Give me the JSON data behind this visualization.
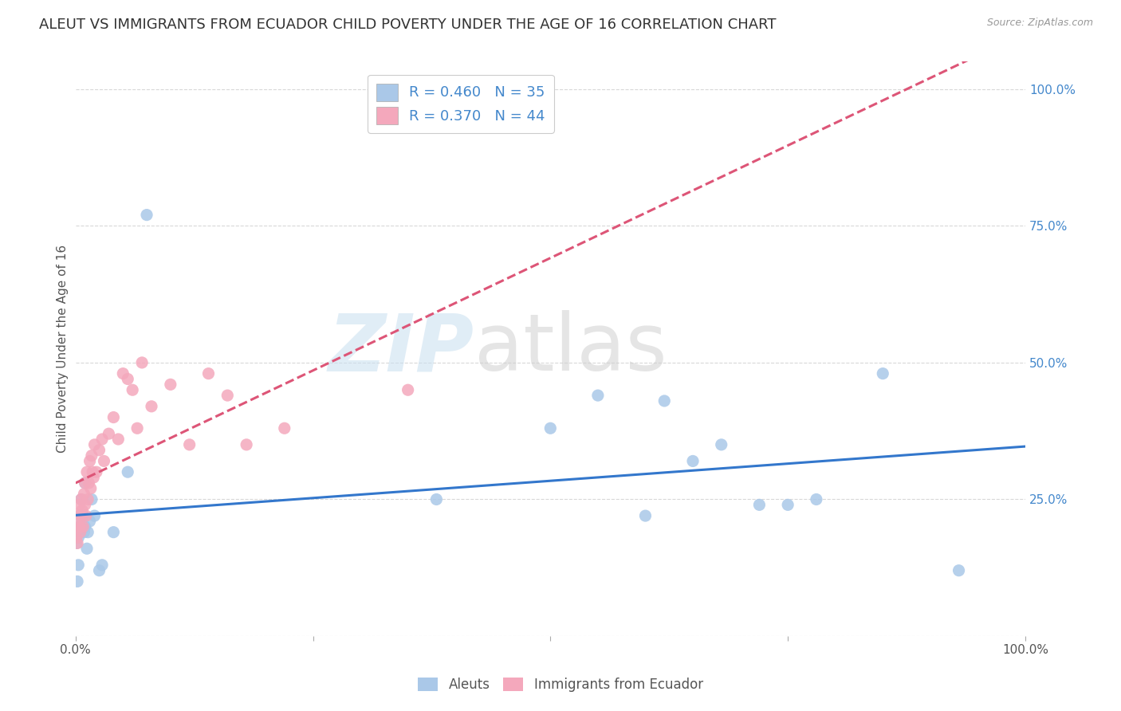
{
  "title": "ALEUT VS IMMIGRANTS FROM ECUADOR CHILD POVERTY UNDER THE AGE OF 16 CORRELATION CHART",
  "source": "Source: ZipAtlas.com",
  "ylabel": "Child Poverty Under the Age of 16",
  "aleuts_R": 0.46,
  "aleuts_N": 35,
  "ecuador_R": 0.37,
  "ecuador_N": 44,
  "aleuts_color": "#aac8e8",
  "ecuador_color": "#f4a8bc",
  "aleuts_line_color": "#3377cc",
  "ecuador_line_color": "#dd5577",
  "background_color": "#ffffff",
  "grid_color": "#d8d8d8",
  "aleuts_x": [
    0.001,
    0.002,
    0.003,
    0.003,
    0.004,
    0.005,
    0.005,
    0.006,
    0.007,
    0.008,
    0.009,
    0.01,
    0.01,
    0.012,
    0.013,
    0.015,
    0.017,
    0.02,
    0.025,
    0.028,
    0.04,
    0.055,
    0.075,
    0.38,
    0.5,
    0.55,
    0.6,
    0.62,
    0.65,
    0.68,
    0.72,
    0.75,
    0.78,
    0.85,
    0.93
  ],
  "aleuts_y": [
    0.17,
    0.1,
    0.13,
    0.18,
    0.2,
    0.19,
    0.22,
    0.25,
    0.2,
    0.22,
    0.19,
    0.2,
    0.28,
    0.16,
    0.19,
    0.21,
    0.25,
    0.22,
    0.12,
    0.13,
    0.19,
    0.3,
    0.77,
    0.25,
    0.38,
    0.44,
    0.22,
    0.43,
    0.32,
    0.35,
    0.24,
    0.24,
    0.25,
    0.48,
    0.12
  ],
  "ecuador_x": [
    0.001,
    0.002,
    0.003,
    0.003,
    0.004,
    0.005,
    0.005,
    0.006,
    0.006,
    0.007,
    0.008,
    0.009,
    0.01,
    0.01,
    0.011,
    0.012,
    0.013,
    0.014,
    0.015,
    0.016,
    0.017,
    0.018,
    0.019,
    0.02,
    0.022,
    0.025,
    0.028,
    0.03,
    0.035,
    0.04,
    0.045,
    0.05,
    0.055,
    0.06,
    0.065,
    0.07,
    0.08,
    0.1,
    0.12,
    0.14,
    0.16,
    0.18,
    0.22,
    0.35
  ],
  "ecuador_y": [
    0.18,
    0.17,
    0.2,
    0.22,
    0.24,
    0.2,
    0.19,
    0.25,
    0.22,
    0.23,
    0.2,
    0.26,
    0.28,
    0.24,
    0.22,
    0.3,
    0.25,
    0.28,
    0.32,
    0.27,
    0.33,
    0.3,
    0.29,
    0.35,
    0.3,
    0.34,
    0.36,
    0.32,
    0.37,
    0.4,
    0.36,
    0.48,
    0.47,
    0.45,
    0.38,
    0.5,
    0.42,
    0.46,
    0.35,
    0.48,
    0.44,
    0.35,
    0.38,
    0.45
  ],
  "xlim": [
    0,
    1.0
  ],
  "ylim": [
    0,
    1.05
  ],
  "xticks": [
    0.0,
    0.25,
    0.5,
    0.75,
    1.0
  ],
  "xtick_labels": [
    "0.0%",
    "",
    "",
    "",
    "100.0%"
  ],
  "yticks": [
    0.0,
    0.25,
    0.5,
    0.75,
    1.0
  ],
  "ytick_labels_right": [
    "",
    "25.0%",
    "50.0%",
    "75.0%",
    "100.0%"
  ],
  "title_fontsize": 13,
  "axis_fontsize": 11,
  "tick_fontsize": 11,
  "source_fontsize": 9
}
